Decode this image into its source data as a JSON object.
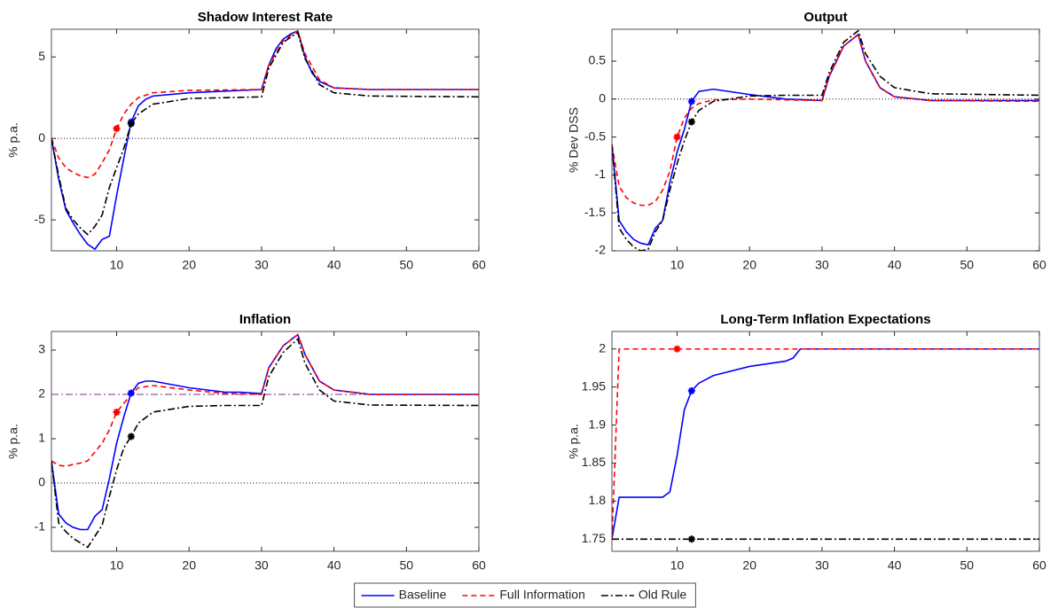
{
  "chart_data": [
    {
      "type": "line",
      "title": "Shadow Interest Rate",
      "y_label": "% p.a.",
      "xlim": [
        1,
        60
      ],
      "xticks": [
        10,
        20,
        30,
        40,
        50,
        60
      ],
      "ylim": [
        -6.9,
        6.7
      ],
      "yticks": [
        -5,
        0,
        5
      ],
      "legend": "bottom-center",
      "hlines": [
        {
          "y": 0,
          "style": "dotted",
          "color": "#000000"
        }
      ],
      "series": [
        {
          "name": "Baseline",
          "color": "#0000ff",
          "dash": "solid",
          "marker_x": 12,
          "x": [
            1,
            2,
            3,
            4,
            5,
            6,
            7,
            8,
            9,
            10,
            11,
            12,
            13,
            14,
            15,
            20,
            25,
            30,
            31,
            32,
            33,
            34,
            35,
            36,
            37,
            38,
            40,
            45,
            60
          ],
          "values": [
            0,
            -2.5,
            -4.4,
            -5.2,
            -5.9,
            -6.5,
            -6.8,
            -6.2,
            -6,
            -3.5,
            -1.2,
            1,
            2,
            2.4,
            2.6,
            2.8,
            2.9,
            3,
            4.5,
            5.5,
            6.1,
            6.4,
            6.6,
            5,
            4,
            3.5,
            3.1,
            3,
            3
          ]
        },
        {
          "name": "Full Information",
          "color": "#ff0000",
          "dash": "dashed",
          "marker_x": 10,
          "x": [
            1,
            2,
            3,
            4,
            5,
            6,
            7,
            8,
            9,
            10,
            11,
            12,
            13,
            15,
            20,
            30,
            31,
            33,
            35,
            36,
            38,
            40,
            45,
            60
          ],
          "values": [
            0,
            -1.2,
            -1.8,
            -2.1,
            -2.3,
            -2.4,
            -2.2,
            -1.5,
            -0.7,
            0.6,
            1.5,
            2.1,
            2.5,
            2.8,
            2.95,
            3,
            4.5,
            6,
            6.6,
            5.2,
            3.6,
            3.1,
            3,
            3
          ]
        },
        {
          "name": "Old Rule",
          "color": "#000000",
          "dash": "dashdot",
          "marker_x": 12,
          "x": [
            1,
            2,
            3,
            4,
            5,
            6,
            7,
            8,
            9,
            10,
            11,
            12,
            13,
            15,
            20,
            30,
            31,
            33,
            35,
            36,
            38,
            40,
            45,
            60
          ],
          "values": [
            0,
            -2.3,
            -4.3,
            -5,
            -5.5,
            -5.9,
            -5.4,
            -4.7,
            -3,
            -1.8,
            -0.6,
            0.9,
            1.5,
            2.1,
            2.45,
            2.55,
            4.3,
            5.9,
            6.5,
            4.9,
            3.3,
            2.8,
            2.6,
            2.55
          ]
        }
      ]
    },
    {
      "type": "line",
      "title": "Output",
      "y_label": "% Dev DSS",
      "xlim": [
        1,
        60
      ],
      "xticks": [
        10,
        20,
        30,
        40,
        50,
        60
      ],
      "ylim": [
        -2,
        0.92
      ],
      "yticks": [
        -2,
        -1.5,
        -1,
        -0.5,
        0,
        0.5
      ],
      "hlines": [
        {
          "y": 0,
          "style": "dotted",
          "color": "#000000"
        }
      ],
      "series": [
        {
          "name": "Baseline",
          "color": "#0000ff",
          "dash": "solid",
          "marker_x": 12,
          "x": [
            1,
            2,
            3,
            4,
            5,
            6,
            7,
            8,
            9,
            10,
            11,
            12,
            13,
            15,
            20,
            25,
            30,
            31,
            33,
            35,
            36,
            38,
            40,
            45,
            60
          ],
          "values": [
            -0.6,
            -1.6,
            -1.75,
            -1.85,
            -1.9,
            -1.92,
            -1.7,
            -1.6,
            -1.1,
            -0.7,
            -0.4,
            -0.03,
            0.1,
            0.13,
            0.06,
            0,
            -0.02,
            0.3,
            0.7,
            0.85,
            0.5,
            0.15,
            0.03,
            -0.02,
            -0.02
          ]
        },
        {
          "name": "Full Information",
          "color": "#ff0000",
          "dash": "dashed",
          "marker_x": 10,
          "x": [
            1,
            2,
            3,
            4,
            5,
            6,
            7,
            8,
            9,
            10,
            11,
            12,
            13,
            15,
            20,
            30,
            31,
            33,
            35,
            36,
            38,
            40,
            45,
            60
          ],
          "values": [
            -0.6,
            -1.15,
            -1.3,
            -1.37,
            -1.4,
            -1.4,
            -1.35,
            -1.2,
            -0.95,
            -0.5,
            -0.25,
            -0.12,
            -0.06,
            -0.01,
            0,
            -0.02,
            0.3,
            0.7,
            0.85,
            0.5,
            0.15,
            0.03,
            -0.02,
            -0.03
          ]
        },
        {
          "name": "Old Rule",
          "color": "#000000",
          "dash": "dashdot",
          "marker_x": 12,
          "x": [
            1,
            2,
            3,
            4,
            5,
            6,
            7,
            8,
            9,
            10,
            11,
            12,
            13,
            15,
            20,
            25,
            30,
            31,
            33,
            35,
            36,
            38,
            40,
            45,
            60
          ],
          "values": [
            -0.6,
            -1.7,
            -1.85,
            -1.95,
            -2,
            -1.98,
            -1.75,
            -1.6,
            -1.2,
            -0.85,
            -0.55,
            -0.3,
            -0.15,
            -0.03,
            0.04,
            0.05,
            0.05,
            0.35,
            0.75,
            0.9,
            0.6,
            0.3,
            0.15,
            0.07,
            0.05
          ]
        }
      ]
    },
    {
      "type": "line",
      "title": "Inflation",
      "y_label": "% p.a.",
      "xlim": [
        1,
        60
      ],
      "xticks": [
        10,
        20,
        30,
        40,
        50,
        60
      ],
      "ylim": [
        -1.54,
        3.42
      ],
      "yticks": [
        -1,
        0,
        1,
        2,
        3
      ],
      "hlines": [
        {
          "y": 0,
          "style": "dotted",
          "color": "#000000"
        },
        {
          "y": 2,
          "style": "dashdot",
          "color": "#7e2f8e"
        }
      ],
      "series": [
        {
          "name": "Baseline",
          "color": "#0000ff",
          "dash": "solid",
          "marker_x": 12,
          "x": [
            1,
            2,
            3,
            4,
            5,
            6,
            7,
            8,
            9,
            10,
            11,
            12,
            13,
            14,
            15,
            20,
            25,
            27,
            30,
            31,
            33,
            35,
            36,
            38,
            40,
            45,
            60
          ],
          "values": [
            0.5,
            -0.7,
            -0.9,
            -1,
            -1.05,
            -1.05,
            -0.75,
            -0.6,
            0.1,
            0.9,
            1.5,
            2.03,
            2.25,
            2.3,
            2.3,
            2.15,
            2.05,
            2.05,
            2.02,
            2.6,
            3.1,
            3.35,
            2.9,
            2.3,
            2.1,
            2,
            2
          ]
        },
        {
          "name": "Full Information",
          "color": "#ff0000",
          "dash": "dashed",
          "marker_x": 10,
          "x": [
            1,
            2,
            3,
            4,
            5,
            6,
            7,
            8,
            9,
            10,
            11,
            12,
            13,
            15,
            20,
            25,
            30,
            31,
            33,
            35,
            36,
            38,
            40,
            45,
            60
          ],
          "values": [
            0.5,
            0.4,
            0.38,
            0.42,
            0.45,
            0.5,
            0.7,
            0.9,
            1.2,
            1.6,
            1.8,
            2,
            2.15,
            2.2,
            2.1,
            2.02,
            2,
            2.6,
            3.1,
            3.35,
            2.9,
            2.3,
            2.1,
            2,
            2
          ]
        },
        {
          "name": "Old Rule",
          "color": "#000000",
          "dash": "dashdot",
          "marker_x": 12,
          "x": [
            1,
            2,
            3,
            4,
            5,
            6,
            7,
            8,
            9,
            10,
            11,
            12,
            13,
            15,
            20,
            25,
            30,
            31,
            33,
            35,
            36,
            38,
            40,
            45,
            60
          ],
          "values": [
            0.5,
            -0.9,
            -1.1,
            -1.25,
            -1.35,
            -1.45,
            -1.2,
            -0.95,
            -0.3,
            0.3,
            0.8,
            1.05,
            1.35,
            1.6,
            1.73,
            1.75,
            1.75,
            2.4,
            2.95,
            3.25,
            2.7,
            2.1,
            1.85,
            1.76,
            1.75
          ]
        }
      ]
    },
    {
      "type": "line",
      "title": "Long-Term Inflation Expectations",
      "y_label": "% p.a.",
      "xlim": [
        1,
        60
      ],
      "xticks": [
        10,
        20,
        30,
        40,
        50,
        60
      ],
      "ylim": [
        1.734,
        2.023
      ],
      "yticks": [
        1.75,
        1.8,
        1.85,
        1.9,
        1.95,
        2
      ],
      "hlines": [],
      "series": [
        {
          "name": "Baseline",
          "color": "#0000ff",
          "dash": "solid",
          "marker_x": 12,
          "x": [
            1,
            2,
            8,
            9,
            10,
            11,
            12,
            13,
            15,
            20,
            25,
            26,
            27,
            60
          ],
          "values": [
            1.75,
            1.805,
            1.805,
            1.812,
            1.86,
            1.92,
            1.945,
            1.955,
            1.965,
            1.977,
            1.984,
            1.988,
            2,
            2
          ]
        },
        {
          "name": "Full Information",
          "color": "#ff0000",
          "dash": "dashed",
          "marker_x": 10,
          "x": [
            1,
            2,
            10,
            60
          ],
          "values": [
            1.75,
            2,
            2,
            2
          ]
        },
        {
          "name": "Old Rule",
          "color": "#000000",
          "dash": "dashdot",
          "marker_x": 12,
          "x": [
            1,
            12,
            60
          ],
          "values": [
            1.75,
            1.75,
            1.75
          ]
        }
      ]
    }
  ]
}
